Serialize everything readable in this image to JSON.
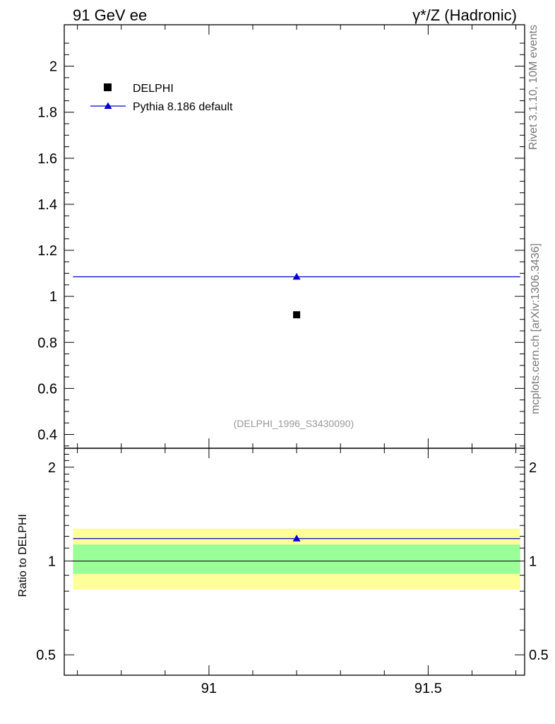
{
  "header": {
    "left": "91 GeV ee",
    "right": "γ*/Z (Hadronic)"
  },
  "side_text": {
    "rivet": "Rivet 3.1.10,  10M events",
    "mcplots": "mcplots.cern.ch [arXiv:1306.3436]"
  },
  "watermark": "(DELPHI_1996_S3430090)",
  "legend": {
    "data_label": "DELPHI",
    "mc_label": "Pythia 8.186 default"
  },
  "colors": {
    "mc": "#0000cc",
    "data": "#000000",
    "band_inner": "#99ff99",
    "band_outer": "#ffff99"
  },
  "chart_data": [
    {
      "type": "scatter",
      "xlim": [
        90.67,
        91.72
      ],
      "ylim": [
        0.34,
        2.18
      ],
      "yticks": [
        {
          "v": 0.4,
          "label": "0.4"
        },
        {
          "v": 0.6,
          "label": "0.6"
        },
        {
          "v": 0.8,
          "label": "0.8"
        },
        {
          "v": 1.0,
          "label": "1"
        },
        {
          "v": 1.2,
          "label": "1.2"
        },
        {
          "v": 1.4,
          "label": "1.4"
        },
        {
          "v": 1.6,
          "label": "1.6"
        },
        {
          "v": 1.8,
          "label": "1.8"
        },
        {
          "v": 2.0,
          "label": "2"
        }
      ],
      "series": [
        {
          "name": "DELPHI",
          "x": [
            91.2
          ],
          "y": [
            0.92
          ],
          "marker": "square"
        },
        {
          "name": "Pythia 8.186 default",
          "x": [
            91.2
          ],
          "y": [
            1.085
          ],
          "marker": "triangle",
          "xerr": [
            [
              90.69,
              91.71
            ]
          ]
        }
      ],
      "legend_position": "top-left"
    },
    {
      "type": "scatter",
      "ylabel": "Ratio to DELPHI",
      "xlim": [
        90.67,
        91.72
      ],
      "ylim": [
        0.43,
        2.3
      ],
      "log_y": true,
      "yticks": [
        {
          "v": 0.5,
          "label": "0.5"
        },
        {
          "v": 1,
          "label": "1"
        },
        {
          "v": 2,
          "label": "2"
        }
      ],
      "xticks": [
        {
          "v": 91,
          "label": "91"
        },
        {
          "v": 91.5,
          "label": "91.5"
        }
      ],
      "series": [
        {
          "name": "Pythia 8.186 default",
          "x": [
            91.2
          ],
          "y": [
            1.18
          ],
          "marker": "triangle"
        }
      ],
      "bands": {
        "inner": [
          0.91,
          1.13
        ],
        "outer": [
          0.81,
          1.27
        ]
      },
      "reference_line": 1
    }
  ]
}
